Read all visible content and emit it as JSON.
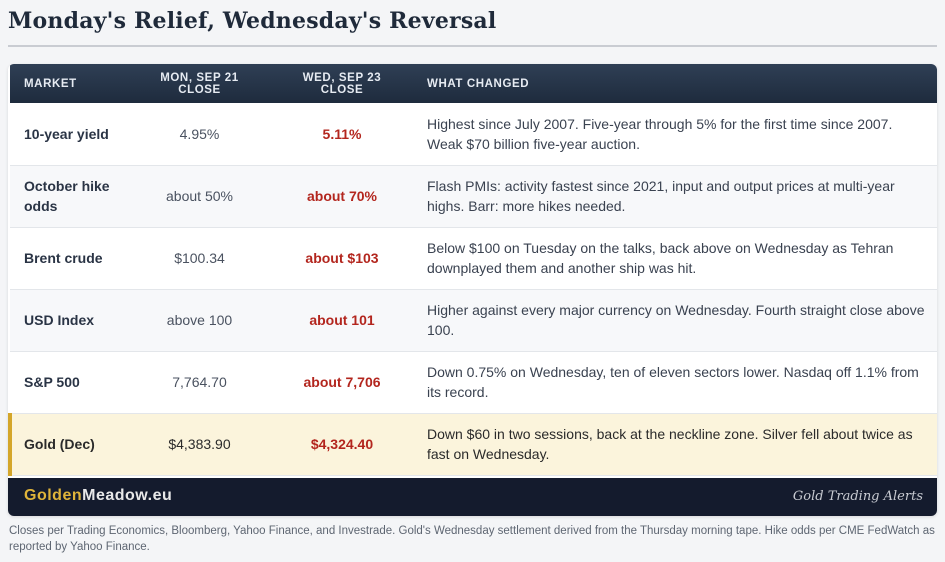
{
  "title": "Monday's Relief, Wednesday's Reversal",
  "columns": [
    "MARKET",
    "MON, SEP 21 CLOSE",
    "WED, SEP 23 CLOSE",
    "WHAT CHANGED"
  ],
  "rows": [
    {
      "market": "10-year yield",
      "mon": "4.95%",
      "wed": "5.11%",
      "note": "Highest since July 2007. Five-year through 5% for the first time since 2007. Weak $70 billion five-year auction."
    },
    {
      "market": "October hike odds",
      "mon": "about 50%",
      "wed": "about 70%",
      "note": "Flash PMIs: activity fastest since 2021, input and output prices at multi-year highs. Barr: more hikes needed."
    },
    {
      "market": "Brent crude",
      "mon": "$100.34",
      "wed": "about $103",
      "note": "Below $100 on Tuesday on the talks, back above on Wednesday as Tehran downplayed them and another ship was hit."
    },
    {
      "market": "USD Index",
      "mon": "above 100",
      "wed": "about 101",
      "note": "Higher against every major currency on Wednesday. Fourth straight close above 100."
    },
    {
      "market": "S&P 500",
      "mon": "7,764.70",
      "wed": "about 7,706",
      "note": "Down 0.75% on Wednesday, ten of eleven sectors lower. Nasdaq off 1.1% from its record."
    },
    {
      "market": "Gold (Dec)",
      "mon": "$4,383.90",
      "wed": "$4,324.40",
      "note": "Down $60 in two sessions, back at the neckline zone. Silver fell about twice as fast on Wednesday."
    }
  ],
  "footer": {
    "brand_part1": "Golden",
    "brand_part2": "Meadow.eu",
    "tagline": "Gold Trading Alerts"
  },
  "source_note": "Closes per Trading Economics, Bloomberg, Yahoo Finance, and Investrade. Gold's Wednesday settlement derived from the Thursday morning tape. Hike odds per CME FedWatch as reported by Yahoo Finance.",
  "colors": {
    "header_bg": "#1e2b3d",
    "wed_value": "#b3261e",
    "gold_highlight": "#fbf4dc",
    "gold_accent": "#d4a62a",
    "footer_bg": "#141b2d"
  }
}
